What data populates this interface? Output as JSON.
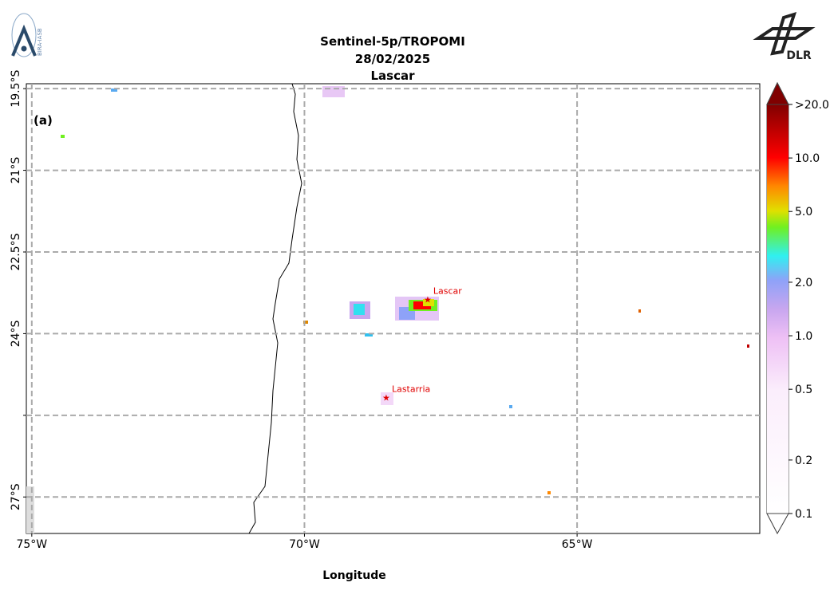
{
  "map": {
    "title": [
      "Sentinel-5p/TROPOMI",
      "28/02/2025",
      "Lascar"
    ],
    "panel_label": "(a)",
    "x_label": "Longitude",
    "logos": {
      "left": "BIRA-IASB",
      "right": "DLR"
    },
    "xlim": [
      -75.1,
      -61.65
    ],
    "ylim": [
      -27.67,
      -19.41
    ],
    "lon_ticks": [
      {
        "value": -75,
        "label": "75°W"
      },
      {
        "value": -70,
        "label": "70°W"
      },
      {
        "value": -65,
        "label": "65°W"
      }
    ],
    "lat_ticks": [
      {
        "value": -19.5,
        "label": "19.5°S"
      },
      {
        "value": -21,
        "label": "21°S"
      },
      {
        "value": -22.5,
        "label": "22.5°S"
      },
      {
        "value": -24,
        "label": "24°S"
      },
      {
        "value": -25.5,
        "label": null
      },
      {
        "value": -27,
        "label": "27°S"
      }
    ],
    "volcanoes": [
      {
        "name": "Lascar",
        "lon": -67.74,
        "lat": -23.37
      },
      {
        "name": "Lastarria",
        "lon": -68.5,
        "lat": -25.17
      }
    ],
    "colorbar": {
      "log_scale": true,
      "lim": [
        0.1,
        20
      ],
      "ticks": [
        {
          "value": 0.1,
          "label": "0.1"
        },
        {
          "value": 0.2,
          "label": "0.2"
        },
        {
          "value": 0.5,
          "label": "0.5"
        },
        {
          "value": 1,
          "label": "1.0"
        },
        {
          "value": 2,
          "label": "2.0"
        },
        {
          "value": 5,
          "label": "5.0"
        },
        {
          "value": 10,
          "label": "10.0"
        },
        {
          "value": 20,
          "label": ">20.0"
        }
      ]
    }
  }
}
